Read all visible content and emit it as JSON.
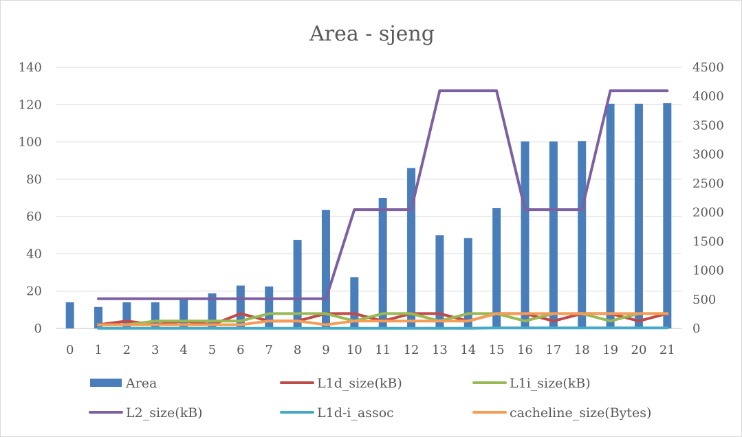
{
  "chart_data": {
    "type": "bar",
    "title": "Area - sjeng",
    "xlabel": "",
    "ylabel": "",
    "categories": [
      "0",
      "1",
      "2",
      "3",
      "4",
      "5",
      "6",
      "7",
      "8",
      "9",
      "10",
      "11",
      "12",
      "13",
      "14",
      "15",
      "16",
      "17",
      "18",
      "19",
      "20",
      "21"
    ],
    "ylim": [
      0,
      140
    ],
    "yticks": [
      0,
      20,
      40,
      60,
      80,
      100,
      120,
      140
    ],
    "y2lim": [
      0,
      4500
    ],
    "y2ticks": [
      0,
      500,
      1000,
      1500,
      2000,
      2500,
      3000,
      3500,
      4000,
      4500
    ],
    "grid": true,
    "legend_position": "bottom",
    "series": [
      {
        "name": "Area",
        "kind": "bar",
        "axis": "left",
        "color": "#4a7ebb",
        "values": [
          14,
          11.5,
          14,
          14,
          16,
          18.8,
          23,
          22.5,
          47.5,
          63.5,
          27.5,
          70,
          86,
          50,
          48.5,
          64.5,
          100.3,
          100.3,
          100.5,
          120.5,
          120.5,
          120.8
        ]
      },
      {
        "name": "L1d_size(kB)",
        "kind": "line",
        "axis": "right",
        "color": "#be4b48",
        "values": [
          null,
          64,
          128,
          64,
          128,
          64,
          256,
          128,
          128,
          256,
          256,
          128,
          256,
          256,
          128,
          256,
          256,
          128,
          256,
          256,
          128,
          256
        ]
      },
      {
        "name": "L1i_size(kB)",
        "kind": "line",
        "axis": "right",
        "color": "#98b954",
        "values": [
          null,
          64,
          64,
          128,
          128,
          128,
          128,
          256,
          256,
          256,
          128,
          256,
          256,
          128,
          256,
          256,
          128,
          256,
          256,
          128,
          256,
          256
        ]
      },
      {
        "name": "L2_size(kB)",
        "kind": "line",
        "axis": "right",
        "color": "#7d60a0",
        "values": [
          null,
          512,
          512,
          512,
          512,
          512,
          512,
          512,
          512,
          512,
          2048,
          2048,
          2048,
          4096,
          4096,
          4096,
          2048,
          2048,
          2048,
          4096,
          4096,
          4096
        ]
      },
      {
        "name": "L1d-i_assoc",
        "kind": "line",
        "axis": "right",
        "color": "#46aac5",
        "values": [
          null,
          2,
          2,
          2,
          2,
          2,
          2,
          2,
          2,
          2,
          4,
          4,
          4,
          4,
          4,
          8,
          8,
          8,
          8,
          8,
          8,
          8
        ]
      },
      {
        "name": "cacheline_size(Bytes)",
        "kind": "line",
        "axis": "right",
        "color": "#f59d56",
        "values": [
          null,
          64,
          64,
          64,
          64,
          64,
          64,
          128,
          128,
          64,
          128,
          128,
          128,
          128,
          128,
          256,
          256,
          256,
          256,
          256,
          256,
          256
        ]
      }
    ]
  }
}
